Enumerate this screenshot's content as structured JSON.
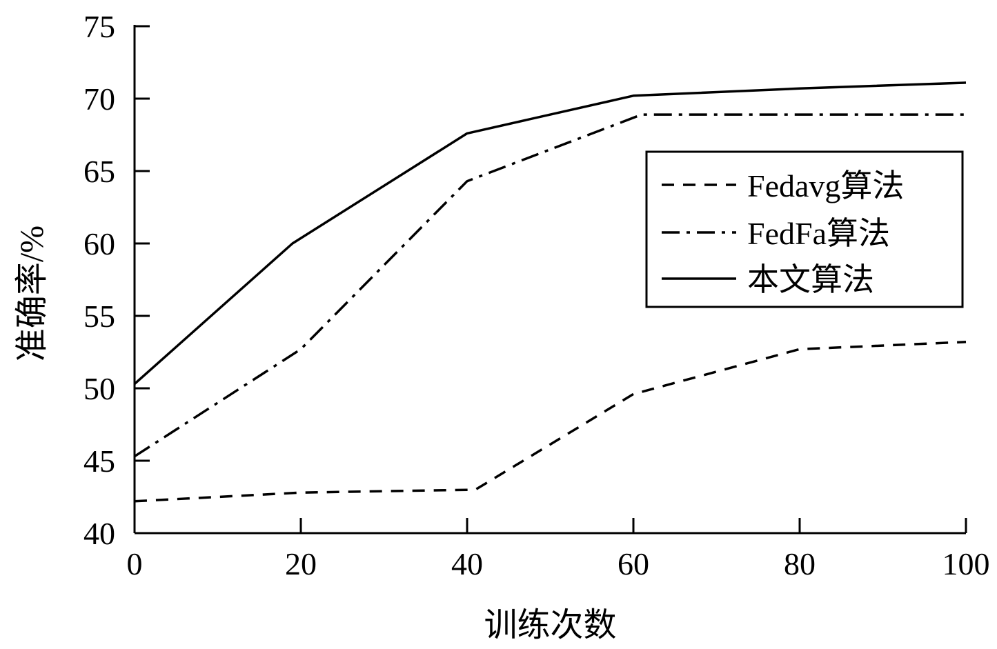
{
  "chart_data": {
    "type": "line",
    "title": "",
    "xlabel": "训练次数",
    "ylabel": "准确率/%",
    "x": [
      0,
      20,
      40,
      60,
      80,
      100
    ],
    "xlim": [
      0,
      100
    ],
    "ylim": [
      40,
      75
    ],
    "xticks": [
      "0",
      "20",
      "40",
      "60",
      "80",
      "100"
    ],
    "yticks": [
      "40",
      "45",
      "50",
      "55",
      "60",
      "65",
      "70",
      "75"
    ],
    "grid": false,
    "legend_position": "right",
    "series": [
      {
        "name": "Fedavg算法",
        "style": "dashed",
        "color": "#000000",
        "x": [
          0,
          20,
          41,
          60,
          80,
          100
        ],
        "values": [
          42.2,
          42.8,
          43.0,
          49.6,
          52.7,
          53.2
        ]
      },
      {
        "name": "FedFa算法",
        "style": "dashdot",
        "color": "#000000",
        "x": [
          0,
          20,
          40,
          61,
          80,
          100
        ],
        "values": [
          45.3,
          52.7,
          64.3,
          68.9,
          68.9,
          68.9
        ]
      },
      {
        "name": "本文算法",
        "style": "solid",
        "color": "#000000",
        "x": [
          0,
          19,
          40,
          60,
          80,
          100
        ],
        "values": [
          50.3,
          60.0,
          67.6,
          70.2,
          70.7,
          71.1
        ]
      }
    ]
  }
}
